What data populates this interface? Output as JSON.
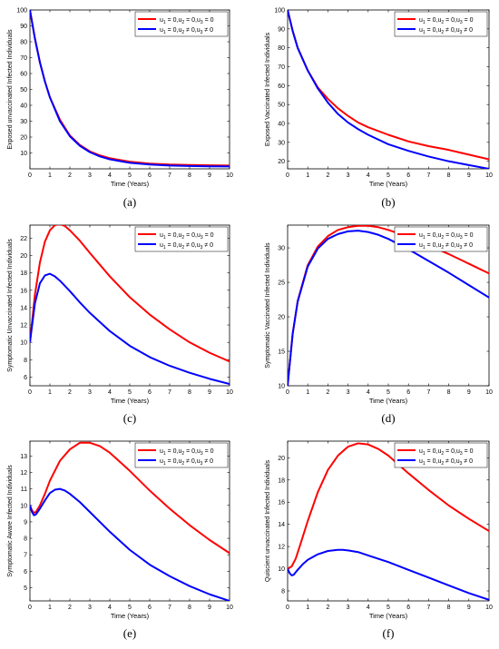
{
  "colors": {
    "no_control": "#ff0000",
    "with_control": "#0000ff"
  },
  "legend_entries": [
    {
      "key": "no_control",
      "base": [
        "u",
        "1",
        " = 0,u",
        "2",
        " = 0,u",
        "3",
        " = 0"
      ]
    },
    {
      "key": "with_control",
      "base": [
        "u",
        "1",
        " = 0,u",
        "2",
        " ≠ 0,u",
        "3",
        " ≠ 0"
      ]
    }
  ],
  "chart_data": [
    {
      "type": "line",
      "caption": "(a)",
      "xlabel": "Time (Years)",
      "ylabel": "Exposed unvaccinated Infected Individuals",
      "xlim": [
        0,
        10
      ],
      "ylim": [
        0,
        100
      ],
      "xticks": [
        0,
        1,
        2,
        3,
        4,
        5,
        6,
        7,
        8,
        9,
        10
      ],
      "yticks": [
        10,
        20,
        30,
        40,
        50,
        60,
        70,
        80,
        90,
        100
      ],
      "legend": "top-right",
      "series": [
        {
          "key": "no_control",
          "x": [
            0,
            0.25,
            0.5,
            0.75,
            1,
            1.5,
            2,
            2.5,
            3,
            3.5,
            4,
            5,
            6,
            7,
            8,
            9,
            10
          ],
          "y": [
            100,
            82,
            67,
            55,
            45,
            31,
            21,
            15,
            11,
            8.5,
            6.7,
            4.5,
            3.3,
            2.7,
            2.4,
            2.2,
            2.1
          ]
        },
        {
          "key": "with_control",
          "x": [
            0,
            0.25,
            0.5,
            0.75,
            1,
            1.5,
            2,
            2.5,
            3,
            3.5,
            4,
            5,
            6,
            7,
            8,
            9,
            10
          ],
          "y": [
            100,
            82,
            67,
            55,
            45,
            30,
            20.5,
            14.5,
            10.5,
            7.8,
            6,
            3.8,
            2.7,
            2.1,
            1.8,
            1.6,
            1.5
          ]
        }
      ]
    },
    {
      "type": "line",
      "caption": "(b)",
      "xlabel": "Time (Years)",
      "ylabel": "Exposed Vaccinated Infected Individuals",
      "xlim": [
        0,
        10
      ],
      "ylim": [
        16,
        100
      ],
      "xticks": [
        0,
        1,
        2,
        3,
        4,
        5,
        6,
        7,
        8,
        9,
        10
      ],
      "yticks": [
        20,
        30,
        40,
        50,
        60,
        70,
        80,
        90,
        100
      ],
      "legend": "top-right",
      "series": [
        {
          "key": "no_control",
          "x": [
            0,
            0.25,
            0.5,
            1,
            1.5,
            2,
            2.5,
            3,
            3.5,
            4,
            5,
            6,
            7,
            8,
            9,
            10
          ],
          "y": [
            100,
            89,
            80,
            68,
            59,
            53,
            48,
            44,
            40.5,
            38,
            34,
            30.5,
            28,
            26,
            23.5,
            21
          ]
        },
        {
          "key": "with_control",
          "x": [
            0,
            0.25,
            0.5,
            1,
            1.5,
            2,
            2.5,
            3,
            3.5,
            4,
            5,
            6,
            7,
            8,
            9,
            10
          ],
          "y": [
            100,
            89,
            80,
            68,
            58.5,
            51,
            45,
            40.5,
            37,
            34,
            29,
            25.5,
            22.5,
            20,
            18,
            16
          ]
        }
      ]
    },
    {
      "type": "line",
      "caption": "(c)",
      "xlabel": "Time (Years)",
      "ylabel": "Symptomatic Unvaccinated Infected Individuals",
      "xlim": [
        0,
        10
      ],
      "ylim": [
        5,
        23.5
      ],
      "xticks": [
        0,
        1,
        2,
        3,
        4,
        5,
        6,
        7,
        8,
        9,
        10
      ],
      "yticks": [
        6,
        8,
        10,
        12,
        14,
        16,
        18,
        20,
        22
      ],
      "legend": "top-right",
      "series": [
        {
          "key": "no_control",
          "x": [
            0,
            0.25,
            0.5,
            0.75,
            1,
            1.25,
            1.5,
            1.75,
            2,
            2.5,
            3,
            4,
            5,
            6,
            7,
            8,
            9,
            10
          ],
          "y": [
            10,
            15.5,
            19.2,
            21.6,
            22.9,
            23.5,
            23.6,
            23.4,
            22.9,
            21.7,
            20.3,
            17.6,
            15.2,
            13.2,
            11.5,
            10,
            8.8,
            7.8
          ]
        },
        {
          "key": "with_control",
          "x": [
            0,
            0.25,
            0.5,
            0.75,
            1,
            1.25,
            1.5,
            2,
            2.5,
            3,
            4,
            5,
            6,
            7,
            8,
            9,
            10
          ],
          "y": [
            10,
            14.5,
            16.8,
            17.7,
            17.9,
            17.6,
            17.1,
            15.9,
            14.6,
            13.4,
            11.3,
            9.6,
            8.3,
            7.3,
            6.5,
            5.8,
            5.2
          ]
        }
      ]
    },
    {
      "type": "line",
      "caption": "(d)",
      "xlabel": "Time (Years)",
      "ylabel": "Symptomatic Vaccinated Infected Individuals",
      "xlim": [
        0,
        10
      ],
      "ylim": [
        10,
        33.3
      ],
      "xticks": [
        0,
        1,
        2,
        3,
        4,
        5,
        6,
        7,
        8,
        9,
        10
      ],
      "yticks": [
        10,
        15,
        20,
        25,
        30
      ],
      "legend": "top-right",
      "series": [
        {
          "key": "no_control",
          "x": [
            0,
            0.25,
            0.5,
            1,
            1.5,
            2,
            2.5,
            3,
            3.5,
            4,
            4.5,
            5,
            6,
            7,
            8,
            9,
            10
          ],
          "y": [
            10,
            17.5,
            22.3,
            27.5,
            30.2,
            31.7,
            32.6,
            33,
            33.2,
            33.2,
            33,
            32.6,
            31.6,
            30.4,
            29.1,
            27.7,
            26.3
          ]
        },
        {
          "key": "with_control",
          "x": [
            0,
            0.25,
            0.5,
            1,
            1.5,
            2,
            2.5,
            3,
            3.5,
            4,
            4.5,
            5,
            6,
            7,
            8,
            9,
            10
          ],
          "y": [
            10,
            17.5,
            22.2,
            27.3,
            29.9,
            31.3,
            32,
            32.4,
            32.5,
            32.3,
            31.9,
            31.3,
            29.8,
            28.1,
            26.4,
            24.6,
            22.8
          ]
        }
      ]
    },
    {
      "type": "line",
      "caption": "(e)",
      "xlabel": "Time (Years)",
      "ylabel": "Symptomatic Aware Infected Individuals",
      "xlim": [
        0,
        10
      ],
      "ylim": [
        4.2,
        13.9
      ],
      "xticks": [
        0,
        1,
        2,
        3,
        4,
        5,
        6,
        7,
        8,
        9,
        10
      ],
      "yticks": [
        5,
        6,
        7,
        8,
        9,
        10,
        11,
        12,
        13
      ],
      "legend": "top-right",
      "series": [
        {
          "key": "no_control",
          "x": [
            0,
            0.1,
            0.2,
            0.3,
            0.5,
            0.75,
            1,
            1.5,
            2,
            2.5,
            3,
            3.5,
            4,
            5,
            6,
            7,
            8,
            9,
            10
          ],
          "y": [
            10,
            9.7,
            9.55,
            9.6,
            10,
            10.7,
            11.5,
            12.7,
            13.4,
            13.8,
            13.8,
            13.6,
            13.2,
            12.1,
            10.9,
            9.8,
            8.8,
            7.9,
            7.1
          ]
        },
        {
          "key": "with_control",
          "x": [
            0,
            0.1,
            0.2,
            0.3,
            0.5,
            0.75,
            1,
            1.25,
            1.5,
            1.75,
            2,
            2.5,
            3,
            4,
            5,
            6,
            7,
            8,
            9,
            10
          ],
          "y": [
            10,
            9.6,
            9.4,
            9.45,
            9.8,
            10.3,
            10.75,
            10.95,
            11,
            10.9,
            10.7,
            10.2,
            9.6,
            8.4,
            7.3,
            6.4,
            5.7,
            5.1,
            4.6,
            4.2
          ]
        }
      ]
    },
    {
      "type": "line",
      "caption": "(f)",
      "xlabel": "Time (Years)",
      "ylabel": "Quiscient unvaccinated Infected Individuals",
      "xlim": [
        0,
        10
      ],
      "ylim": [
        7.1,
        21.5
      ],
      "xticks": [
        0,
        1,
        2,
        3,
        4,
        5,
        6,
        7,
        8,
        9,
        10
      ],
      "yticks": [
        8,
        10,
        12,
        14,
        16,
        18,
        20
      ],
      "legend": "top-right",
      "series": [
        {
          "key": "no_control",
          "x": [
            0,
            0.2,
            0.4,
            0.6,
            1,
            1.5,
            2,
            2.5,
            3,
            3.5,
            4,
            4.5,
            5,
            6,
            7,
            8,
            9,
            10
          ],
          "y": [
            10,
            10.2,
            10.9,
            12,
            14.3,
            16.9,
            18.9,
            20.2,
            21,
            21.3,
            21.2,
            20.8,
            20.2,
            18.6,
            17.1,
            15.7,
            14.5,
            13.4
          ]
        },
        {
          "key": "with_control",
          "x": [
            0,
            0.1,
            0.2,
            0.3,
            0.5,
            0.75,
            1,
            1.5,
            2,
            2.5,
            2.75,
            3,
            3.5,
            4,
            5,
            6,
            7,
            8,
            9,
            10
          ],
          "y": [
            10,
            9.6,
            9.4,
            9.45,
            9.9,
            10.4,
            10.8,
            11.3,
            11.6,
            11.7,
            11.7,
            11.65,
            11.5,
            11.2,
            10.6,
            9.9,
            9.2,
            8.5,
            7.8,
            7.2
          ]
        }
      ]
    }
  ]
}
